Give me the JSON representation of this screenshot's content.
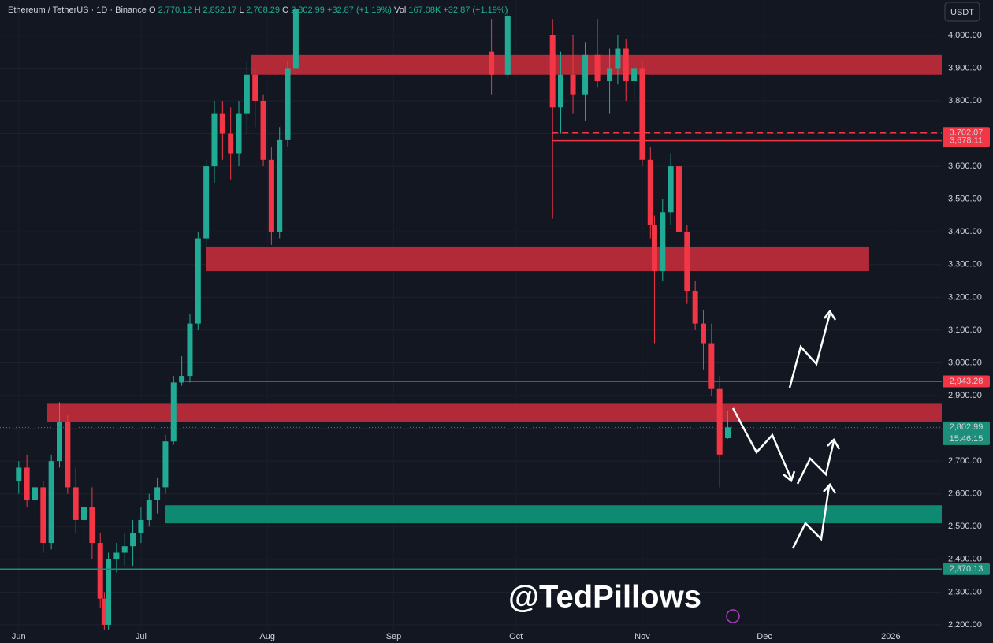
{
  "chart_data": {
    "type": "candlestick",
    "header": {
      "symbol": "Ethereum / TetherUS · 1D · Binance",
      "fields": [
        {
          "key": "O",
          "value": "2,770.12"
        },
        {
          "key": "H",
          "value": "2,852.17"
        },
        {
          "key": "L",
          "value": "2,768.29"
        },
        {
          "key": "C",
          "value": "2,802.99"
        },
        {
          "key": "",
          "value": "+32.87 (+1.19%)"
        },
        {
          "key": "Vol",
          "value": "167.08K"
        },
        {
          "key": "",
          "value": "+32.87 (+1.19%)"
        }
      ]
    },
    "currency": "USDT",
    "watermark": "@TedPillows",
    "up_color": "#22ab94",
    "down_color": "#f23645",
    "series": [
      {
        "name": "ETHUSDT",
        "x": [
          0,
          2,
          4,
          6,
          8,
          10,
          12,
          14,
          16,
          18,
          20,
          21,
          22,
          24,
          26,
          28,
          30,
          32,
          34,
          36,
          38,
          40,
          42,
          44,
          46,
          48,
          50,
          52,
          54,
          56,
          58,
          60,
          62,
          64,
          66,
          68,
          116,
          120,
          131,
          133,
          136,
          139,
          142,
          145,
          147,
          149,
          151,
          153,
          155,
          156,
          158,
          160,
          162,
          164,
          166,
          168,
          170,
          172,
          174
        ],
        "open": [
          2640,
          2680,
          2580,
          2620,
          2450,
          2700,
          2820,
          2620,
          2520,
          2560,
          2450,
          2280,
          2200,
          2400,
          2420,
          2440,
          2480,
          2520,
          2580,
          2620,
          2760,
          2940,
          2960,
          3120,
          3380,
          3600,
          3760,
          3700,
          3640,
          3760,
          3880,
          3800,
          3620,
          3400,
          3680,
          3900,
          3950,
          3880,
          4000,
          3780,
          3880,
          3820,
          3940,
          3860,
          3900,
          3960,
          3860,
          3900,
          3620,
          3420,
          3280,
          3460,
          3600,
          3400,
          3220,
          3120,
          3060,
          2920,
          2770.12
        ],
        "high": [
          2700,
          2720,
          2650,
          2640,
          2720,
          2880,
          2840,
          2680,
          2600,
          2620,
          2480,
          2300,
          2420,
          2450,
          2480,
          2520,
          2560,
          2600,
          2650,
          2780,
          2960,
          3020,
          3150,
          3400,
          3620,
          3800,
          3800,
          3780,
          3800,
          3920,
          3900,
          3820,
          3660,
          3720,
          3920,
          4100,
          4050,
          4080,
          4050,
          3950,
          4000,
          3980,
          4050,
          3960,
          4000,
          3990,
          3920,
          3920,
          3660,
          3450,
          3500,
          3640,
          3620,
          3420,
          3250,
          3160,
          3120,
          2960,
          2852.17
        ],
        "low": [
          2600,
          2560,
          2520,
          2420,
          2430,
          2680,
          2600,
          2480,
          2440,
          2400,
          2250,
          2150,
          2180,
          2360,
          2380,
          2380,
          2450,
          2500,
          2540,
          2600,
          2750,
          2930,
          2940,
          3100,
          3350,
          3550,
          3620,
          3560,
          3600,
          3700,
          3720,
          3600,
          3360,
          3380,
          3660,
          3880,
          3820,
          3870,
          3440,
          3700,
          3760,
          3740,
          3840,
          3760,
          3850,
          3800,
          3800,
          3600,
          3380,
          3060,
          3250,
          3420,
          3360,
          3180,
          3100,
          2980,
          2900,
          2620,
          2768.29
        ],
        "close": [
          2680,
          2580,
          2620,
          2450,
          2700,
          2820,
          2620,
          2520,
          2560,
          2450,
          2280,
          2200,
          2400,
          2420,
          2440,
          2480,
          2520,
          2580,
          2620,
          2760,
          2940,
          2960,
          3120,
          3380,
          3600,
          3760,
          3700,
          3640,
          3760,
          3880,
          3800,
          3620,
          3400,
          3680,
          3900,
          4080,
          3880,
          4060,
          3780,
          3880,
          3820,
          3940,
          3860,
          3900,
          3960,
          3860,
          3900,
          3620,
          3420,
          3280,
          3460,
          3600,
          3400,
          3220,
          3120,
          3060,
          2920,
          2720,
          2802.99
        ]
      }
    ],
    "zones": [
      {
        "color": "#b22a37",
        "range": [
          3880,
          3940
        ],
        "start": 57
      },
      {
        "color": "#b22a37",
        "range": [
          3280,
          3355
        ],
        "start": 46,
        "end": 208.7
      },
      {
        "color": "#b22a37",
        "range": [
          2820,
          2875
        ],
        "start": 7
      },
      {
        "color": "#0e8a72",
        "range": [
          2510,
          2565
        ],
        "start": 36
      }
    ],
    "levels": [
      {
        "value": 3702.07,
        "label": "3,702.07",
        "color": "#f23645",
        "style": "dashed",
        "start": 130.8
      },
      {
        "value": 3678.11,
        "label": "3,678.11",
        "color": "#f23645",
        "style": "solid",
        "start": 130.8
      },
      {
        "value": 2943.28,
        "label": "2,943.28",
        "color": "#f23645",
        "style": "solid",
        "start": 40.8
      },
      {
        "value": 2802.99,
        "label": "2,802.99",
        "color": "#1b8f79",
        "style": "dotted",
        "countdown": "15:46:15"
      },
      {
        "value": 2370.13,
        "label": "2,370.13",
        "color": "#1b8f79",
        "style": "solid"
      }
    ],
    "xlim": [
      -4.6,
      226.5
    ],
    "xticks": [
      {
        "value": 0,
        "label": "Jun"
      },
      {
        "value": 30,
        "label": "Jul"
      },
      {
        "value": 61,
        "label": "Aug"
      },
      {
        "value": 92,
        "label": "Sep"
      },
      {
        "value": 122,
        "label": "Oct"
      },
      {
        "value": 153,
        "label": "Nov"
      },
      {
        "value": 183,
        "label": "Dec"
      },
      {
        "value": 214,
        "label": "2026"
      }
    ],
    "ylim": [
      2183,
      4108
    ],
    "yticks": [
      {
        "value": 2200,
        "label": "2,200.00"
      },
      {
        "value": 2300,
        "label": "2,300.00"
      },
      {
        "value": 2400,
        "label": "2,400.00"
      },
      {
        "value": 2500,
        "label": "2,500.00"
      },
      {
        "value": 2600,
        "label": "2,600.00"
      },
      {
        "value": 2700,
        "label": "2,700.00"
      },
      {
        "value": 2800,
        "label": "2,800.00"
      },
      {
        "value": 2900,
        "label": "2,900.00"
      },
      {
        "value": 3000,
        "label": "3,000.00"
      },
      {
        "value": 3100,
        "label": "3,100.00"
      },
      {
        "value": 3200,
        "label": "3,200.00"
      },
      {
        "value": 3300,
        "label": "3,300.00"
      },
      {
        "value": 3400,
        "label": "3,400.00"
      },
      {
        "value": 3500,
        "label": "3,500.00"
      },
      {
        "value": 3600,
        "label": "3,600.00"
      },
      {
        "value": 3700,
        "label": "3,700.00"
      },
      {
        "value": 3800,
        "label": "3,800.00"
      },
      {
        "value": 3900,
        "label": "3,900.00"
      },
      {
        "value": 4000,
        "label": "4,000.00"
      }
    ]
  }
}
